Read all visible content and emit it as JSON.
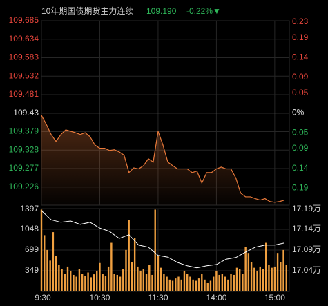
{
  "header": {
    "title": "10年期国债期货主力连续",
    "price": "109.190",
    "change": "-0.22%▼"
  },
  "chart_data": [
    {
      "type": "line",
      "x": [
        0,
        5,
        10,
        15,
        20,
        25,
        30,
        35,
        40,
        45,
        50,
        55,
        60,
        65,
        70,
        75,
        80,
        85,
        90,
        95,
        100,
        105,
        110,
        115,
        120,
        125,
        130,
        135,
        140,
        145,
        150,
        155,
        160,
        165,
        170,
        175,
        180,
        185,
        190,
        195,
        200,
        205,
        210,
        215,
        220,
        225,
        230,
        235,
        240,
        245,
        250
      ],
      "values": [
        109.424,
        109.399,
        109.371,
        109.352,
        109.371,
        109.384,
        109.38,
        109.376,
        109.371,
        109.376,
        109.365,
        109.342,
        109.333,
        109.333,
        109.327,
        109.329,
        109.323,
        109.314,
        109.266,
        109.279,
        109.276,
        109.285,
        109.304,
        109.295,
        109.38,
        109.342,
        109.295,
        109.285,
        109.276,
        109.276,
        109.276,
        109.266,
        109.27,
        109.237,
        109.266,
        109.266,
        109.276,
        109.281,
        109.276,
        109.276,
        109.251,
        109.209,
        109.199,
        109.199,
        109.194,
        109.19,
        109.194,
        109.186,
        109.184,
        109.186,
        109.19
      ],
      "color": "#e8793a",
      "xlim": [
        0,
        255
      ],
      "ylim": [
        109.176,
        109.685
      ],
      "yticks": [
        109.685,
        109.634,
        109.583,
        109.532,
        109.481,
        109.43,
        109.379,
        109.328,
        109.277,
        109.226
      ],
      "y2lim": [
        -0.233,
        0.233
      ],
      "y2ticks": [
        0.23,
        0.19,
        0.14,
        0.09,
        0.05,
        {
          "value": 0,
          "label": "0%"
        },
        {
          "value": -0.05,
          "label": "0.05"
        },
        {
          "value": -0.09,
          "label": "0.09"
        },
        {
          "value": -0.14,
          "label": "0.14"
        },
        {
          "value": -0.19,
          "label": "0.19"
        }
      ],
      "grid": true
    },
    {
      "type": "bar",
      "x": [
        0,
        3,
        6,
        9,
        12,
        15,
        18,
        21,
        24,
        27,
        30,
        33,
        36,
        39,
        42,
        45,
        48,
        51,
        54,
        57,
        60,
        63,
        66,
        69,
        72,
        75,
        78,
        81,
        84,
        87,
        90,
        93,
        96,
        99,
        102,
        105,
        108,
        111,
        114,
        117,
        120,
        123,
        126,
        129,
        132,
        135,
        138,
        141,
        144,
        147,
        150,
        153,
        156,
        159,
        162,
        165,
        168,
        171,
        174,
        177,
        180,
        183,
        186,
        189,
        192,
        195,
        198,
        201,
        204,
        207,
        210,
        213,
        216,
        219,
        222,
        225,
        228,
        231,
        234,
        237,
        240,
        243,
        246,
        249,
        252
      ],
      "values": [
        1380,
        950,
        700,
        520,
        1000,
        600,
        450,
        380,
        300,
        420,
        350,
        280,
        250,
        380,
        300,
        260,
        320,
        240,
        290,
        350,
        480,
        300,
        260,
        420,
        820,
        300,
        280,
        250,
        380,
        700,
        1200,
        500,
        900,
        420,
        350,
        380,
        300,
        450,
        280,
        1380,
        600,
        400,
        300,
        250,
        200,
        180,
        220,
        250,
        200,
        350,
        300,
        250,
        200,
        180,
        220,
        300,
        200,
        150,
        180,
        250,
        350,
        280,
        300,
        250,
        200,
        300,
        280,
        400,
        380,
        300,
        750,
        650,
        500,
        400,
        350,
        420,
        380,
        820,
        450,
        400,
        420,
        650,
        500,
        700,
        450
      ],
      "color": "#f0a040",
      "xlim": [
        0,
        255
      ],
      "xticks": [
        {
          "value": 0,
          "label": "9:30"
        },
        {
          "value": 60,
          "label": "10:30"
        },
        {
          "value": 120,
          "label": "11:30"
        },
        {
          "value": 180,
          "label": "14:00"
        },
        {
          "value": 240,
          "label": "15:00"
        }
      ],
      "ylim": [
        0,
        1397
      ],
      "yticks": [
        1397,
        1048,
        699,
        349
      ],
      "y2lim": [
        16.99,
        17.19
      ],
      "y2ticks": [
        {
          "value": 17.19,
          "label": "17.19万"
        },
        {
          "value": 17.14,
          "label": "17.14万"
        },
        {
          "value": 17.09,
          "label": "17.09万"
        },
        {
          "value": 17.04,
          "label": "17.04万"
        }
      ],
      "line": {
        "x": [
          0,
          10,
          20,
          30,
          40,
          50,
          60,
          70,
          80,
          90,
          100,
          110,
          120,
          130,
          140,
          150,
          160,
          170,
          180,
          190,
          200,
          210,
          220,
          230,
          240,
          250
        ],
        "values": [
          17.185,
          17.163,
          17.157,
          17.16,
          17.152,
          17.157,
          17.143,
          17.135,
          17.118,
          17.127,
          17.102,
          17.097,
          17.077,
          17.073,
          17.06,
          17.052,
          17.047,
          17.052,
          17.055,
          17.068,
          17.072,
          17.085,
          17.097,
          17.102,
          17.102,
          17.107
        ],
        "color": "#ffffff",
        "axis": "y2"
      },
      "grid": true
    }
  ]
}
